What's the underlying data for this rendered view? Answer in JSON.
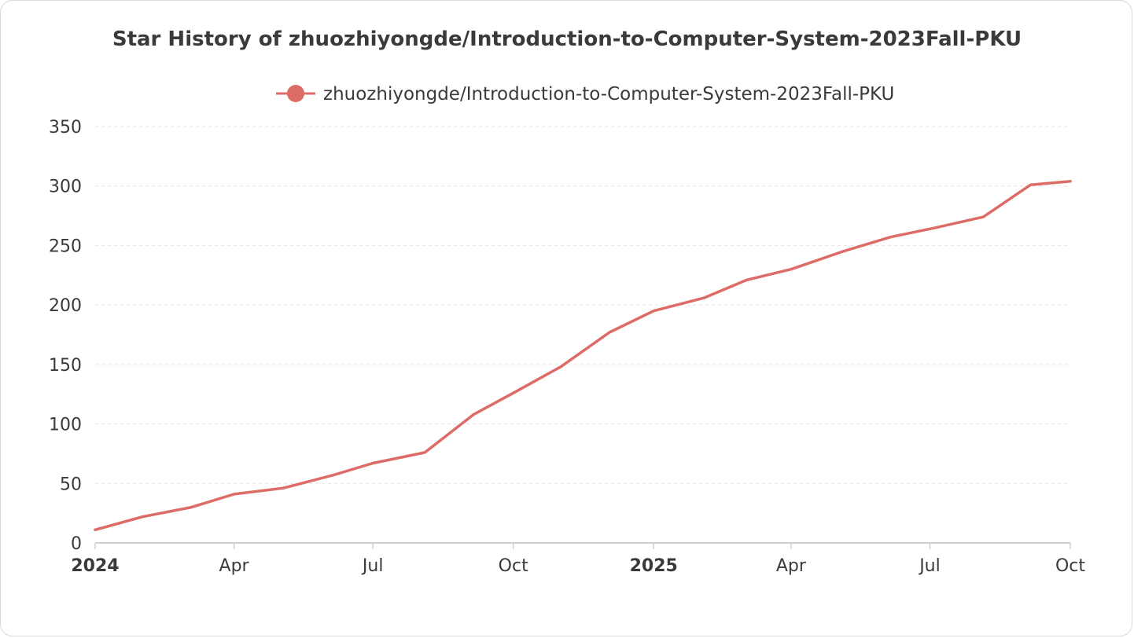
{
  "chart_data": {
    "type": "line",
    "title": "Star History of zhuozhiyongde/Introduction-to-Computer-System-2023Fall-PKU",
    "xlabel": "",
    "ylabel": "",
    "ylim": [
      0,
      350
    ],
    "xlim": [
      "2024-01-01",
      "2025-10-01"
    ],
    "grid": true,
    "legend_position": "top-center",
    "y_ticks": [
      "0",
      "50",
      "100",
      "150",
      "200",
      "250",
      "300",
      "350"
    ],
    "x_ticks": [
      {
        "date": "2024-01-01",
        "label": "2024",
        "bold": true
      },
      {
        "date": "2024-04-01",
        "label": "Apr",
        "bold": false
      },
      {
        "date": "2024-07-01",
        "label": "Jul",
        "bold": false
      },
      {
        "date": "2024-10-01",
        "label": "Oct",
        "bold": false
      },
      {
        "date": "2025-01-01",
        "label": "2025",
        "bold": true
      },
      {
        "date": "2025-04-01",
        "label": "Apr",
        "bold": false
      },
      {
        "date": "2025-07-01",
        "label": "Jul",
        "bold": false
      },
      {
        "date": "2025-10-01",
        "label": "Oct",
        "bold": false
      }
    ],
    "series": [
      {
        "name": "zhuozhiyongde/Introduction-to-Computer-System-2023Fall-PKU",
        "color": "#dd6b66",
        "points": [
          {
            "x": "2024-01-01",
            "y": 11
          },
          {
            "x": "2024-02-01",
            "y": 22
          },
          {
            "x": "2024-03-04",
            "y": 30
          },
          {
            "x": "2024-04-01",
            "y": 41
          },
          {
            "x": "2024-05-03",
            "y": 46
          },
          {
            "x": "2024-06-05",
            "y": 57
          },
          {
            "x": "2024-07-01",
            "y": 67
          },
          {
            "x": "2024-08-04",
            "y": 76
          },
          {
            "x": "2024-09-05",
            "y": 108
          },
          {
            "x": "2024-10-01",
            "y": 126
          },
          {
            "x": "2024-11-01",
            "y": 148
          },
          {
            "x": "2024-12-03",
            "y": 177
          },
          {
            "x": "2025-01-01",
            "y": 195
          },
          {
            "x": "2025-02-03",
            "y": 206
          },
          {
            "x": "2025-03-03",
            "y": 221
          },
          {
            "x": "2025-04-01",
            "y": 230
          },
          {
            "x": "2025-05-05",
            "y": 245
          },
          {
            "x": "2025-06-05",
            "y": 257
          },
          {
            "x": "2025-07-05",
            "y": 265
          },
          {
            "x": "2025-08-05",
            "y": 274
          },
          {
            "x": "2025-09-05",
            "y": 301
          },
          {
            "x": "2025-10-01",
            "y": 304
          }
        ]
      }
    ]
  }
}
